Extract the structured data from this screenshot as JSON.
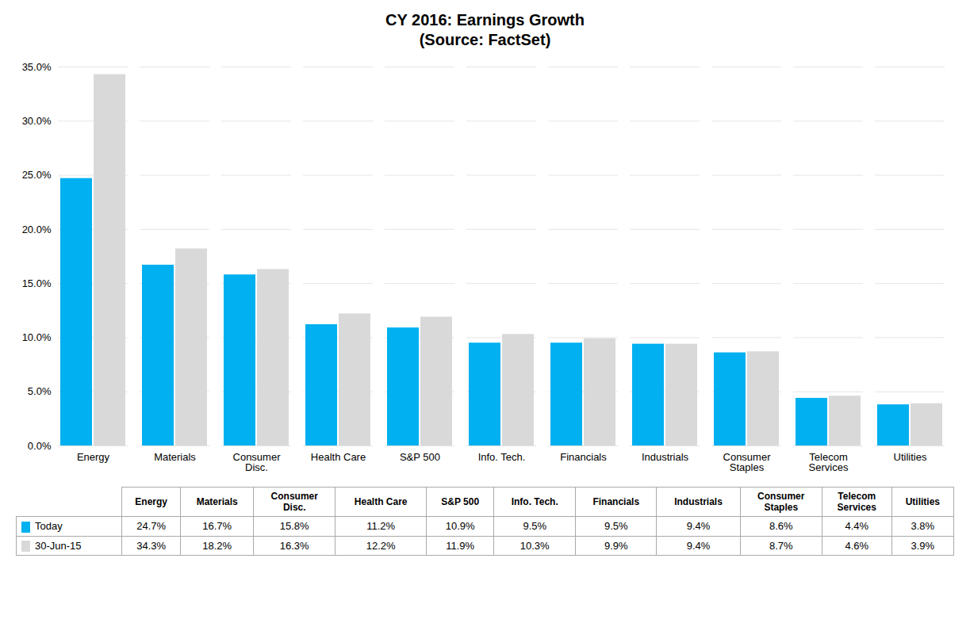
{
  "chart_data": {
    "type": "bar",
    "title": "CY 2016: Earnings Growth",
    "subtitle": "(Source: FactSet)",
    "categories": [
      "Energy",
      "Materials",
      "Consumer\nDisc.",
      "Health Care",
      "S&P 500",
      "Info. Tech.",
      "Financials",
      "Industrials",
      "Consumer\nStaples",
      "Telecom\nServices",
      "Utilities"
    ],
    "series": [
      {
        "name": "Today",
        "color": "#00B0F0",
        "values": [
          24.7,
          16.7,
          15.8,
          11.2,
          10.9,
          9.5,
          9.5,
          9.4,
          8.6,
          4.4,
          3.8
        ],
        "value_labels": [
          "24.7%",
          "16.7%",
          "15.8%",
          "11.2%",
          "10.9%",
          "9.5%",
          "9.5%",
          "9.4%",
          "8.6%",
          "4.4%",
          "3.8%"
        ]
      },
      {
        "name": "30-Jun-15",
        "color": "#D9D9D9",
        "values": [
          34.3,
          18.2,
          16.3,
          12.2,
          11.9,
          10.3,
          9.9,
          9.4,
          8.7,
          4.6,
          3.9
        ],
        "value_labels": [
          "34.3%",
          "18.2%",
          "16.3%",
          "12.2%",
          "11.9%",
          "10.3%",
          "9.9%",
          "9.4%",
          "8.7%",
          "4.6%",
          "3.9%"
        ]
      }
    ],
    "ylim": [
      0,
      35
    ],
    "yticks": [
      {
        "value": 0,
        "label": "0.0%"
      },
      {
        "value": 5,
        "label": "5.0%"
      },
      {
        "value": 10,
        "label": "10.0%"
      },
      {
        "value": 15,
        "label": "15.0%"
      },
      {
        "value": 20,
        "label": "20.0%"
      },
      {
        "value": 25,
        "label": "25.0%"
      },
      {
        "value": 30,
        "label": "30.0%"
      },
      {
        "value": 35,
        "label": "35.0%"
      }
    ],
    "grid": true,
    "legend": "bottom"
  }
}
